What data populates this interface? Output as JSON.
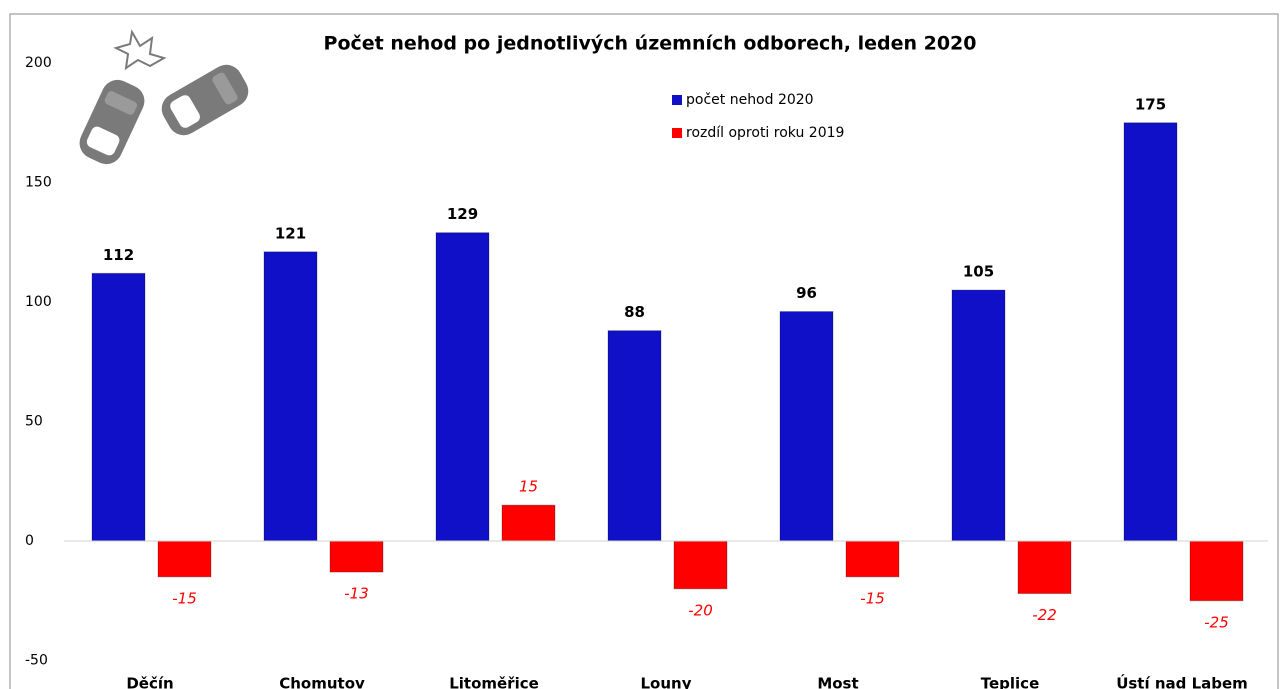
{
  "chart_data": {
    "type": "bar",
    "title": "Počet nehod po jednotlivých územních odborech, leden 2020",
    "categories": [
      "Děčín",
      "Chomutov",
      "Litoměřice",
      "Louny",
      "Most",
      "Teplice",
      "Ústí nad Labem"
    ],
    "series": [
      {
        "name": "počet nehod 2020",
        "color": "#1010c8",
        "values": [
          112,
          121,
          129,
          88,
          96,
          105,
          175
        ]
      },
      {
        "name": "rozdíl oproti roku 2019",
        "color": "#ff0000",
        "values": [
          -15,
          -13,
          15,
          -20,
          -15,
          -22,
          -25
        ]
      }
    ],
    "ylim": [
      -50,
      200
    ],
    "yticks": [
      -50,
      0,
      50,
      100,
      150,
      200
    ],
    "grid": false,
    "legend": "top"
  }
}
